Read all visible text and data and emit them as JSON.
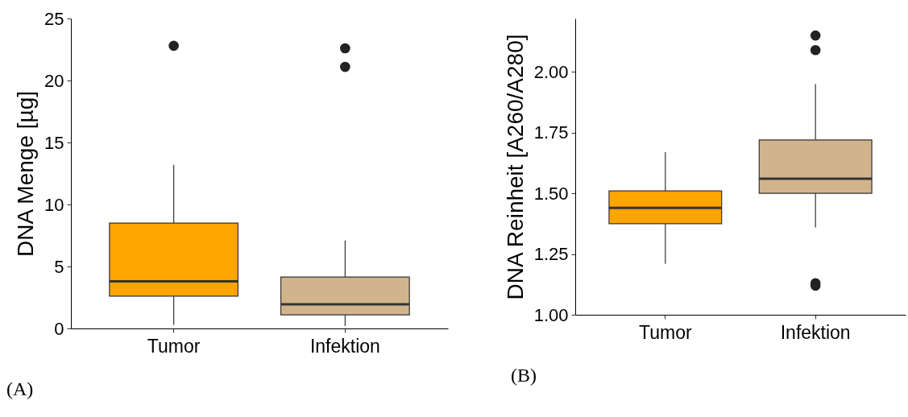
{
  "chart_data": [
    {
      "type": "box",
      "categories": [
        "Tumor",
        "Infektion"
      ],
      "ylabel": "DNA Menge [µg]",
      "ylim": [
        0,
        25
      ],
      "yticks": [
        0,
        5,
        10,
        15,
        20,
        25
      ],
      "colors": [
        "#ffa500",
        "#d2b48c"
      ],
      "grid": false,
      "annotations": [
        "(A)"
      ],
      "boxes": [
        {
          "low": 0.3,
          "q1": 2.6,
          "median": 3.8,
          "q3": 8.5,
          "high": 13.2,
          "outliers": [
            22.8
          ]
        },
        {
          "low": 0.2,
          "q1": 1.1,
          "median": 1.95,
          "q3": 4.15,
          "high": 7.1,
          "outliers": [
            22.6,
            21.1
          ]
        }
      ]
    },
    {
      "type": "box",
      "categories": [
        "Tumor",
        "Infektion"
      ],
      "ylabel": "DNA Reinheit [A260/A280]",
      "ylim": [
        1,
        2.22
      ],
      "yticks": [
        {
          "value": 1,
          "label": "1.00"
        },
        {
          "value": 1.25,
          "label": "1.25"
        },
        {
          "value": 1.5,
          "label": "1.50"
        },
        {
          "value": 1.75,
          "label": "1.75"
        },
        {
          "value": 2,
          "label": "2.00"
        }
      ],
      "colors": [
        "#ffa500",
        "#d2b48c"
      ],
      "grid": false,
      "annotations": [
        "(B)"
      ],
      "boxes": [
        {
          "low": 1.21,
          "q1": 1.375,
          "median": 1.44,
          "q3": 1.51,
          "high": 1.67
        },
        {
          "low": 1.36,
          "q1": 1.5,
          "median": 1.56,
          "q3": 1.72,
          "high": 1.95,
          "outliers": [
            2.15,
            2.09,
            1.13,
            1.12
          ]
        }
      ]
    }
  ]
}
